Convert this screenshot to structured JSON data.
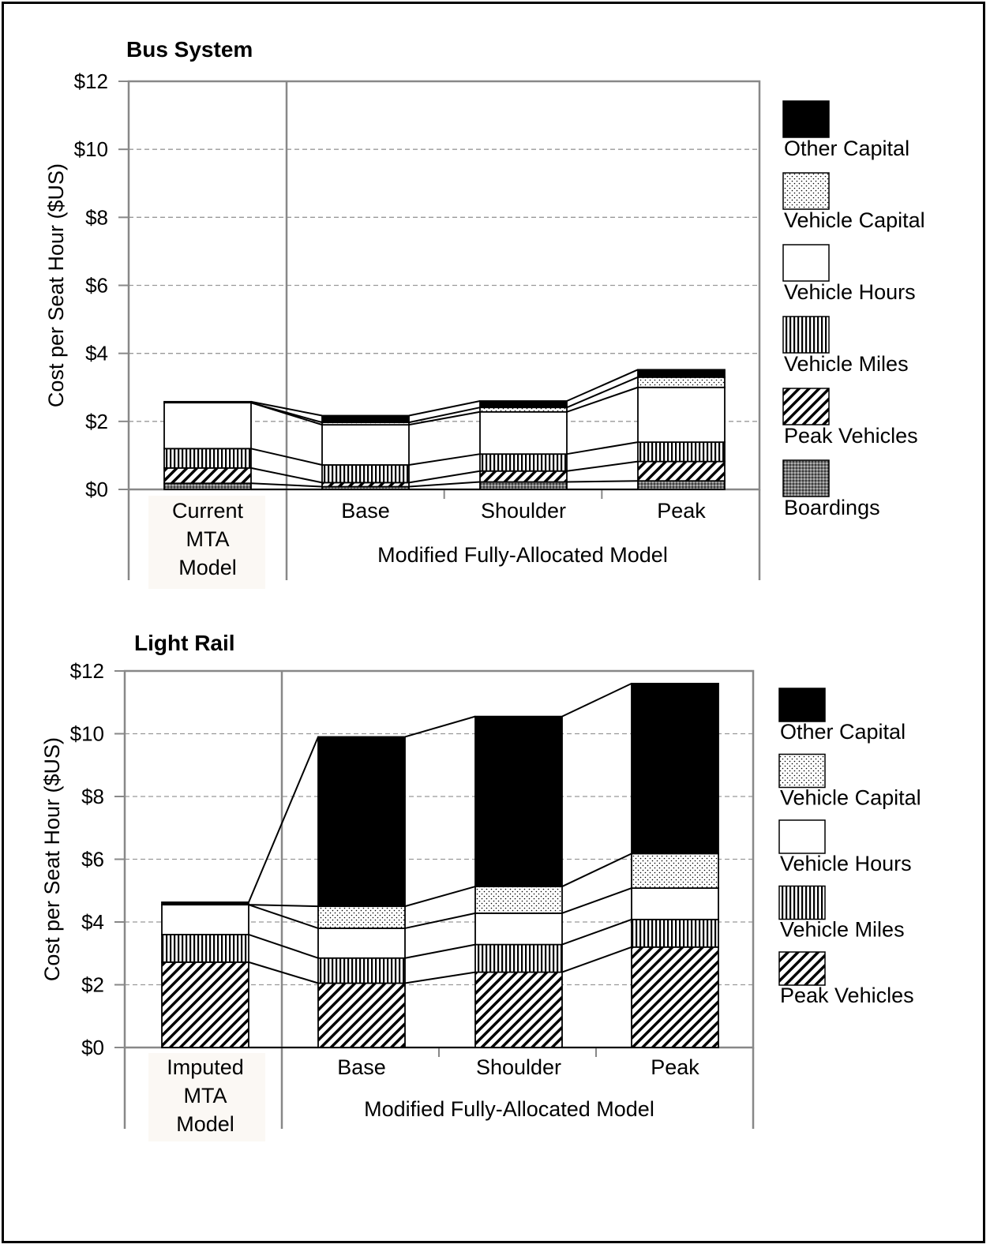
{
  "chart_data": [
    {
      "type": "bar",
      "stacked": true,
      "title": "Bus System",
      "ylabel": "Cost per Seat Hour ($US)",
      "xlabel": "",
      "ylim": [
        0,
        12
      ],
      "yticks": [
        "$0",
        "$2",
        "$4",
        "$6",
        "$8",
        "$10",
        "$12"
      ],
      "grid": true,
      "legend_position": "right",
      "categories": [
        "Current MTA Model",
        "Base",
        "Shoulder",
        "Peak"
      ],
      "category_lines": [
        [
          "Current",
          "MTA",
          "Model"
        ],
        [
          "Base"
        ],
        [
          "Shoulder"
        ],
        [
          "Peak"
        ]
      ],
      "group_label": "Modified Fully-Allocated Model",
      "series": [
        {
          "name": "Boardings",
          "pattern": "dots-dense",
          "values": [
            0.18,
            0.08,
            0.22,
            0.25
          ]
        },
        {
          "name": "Peak Vehicles",
          "pattern": "diag",
          "values": [
            0.45,
            0.12,
            0.32,
            0.57
          ]
        },
        {
          "name": "Vehicle Miles",
          "pattern": "vert",
          "values": [
            0.57,
            0.52,
            0.5,
            0.57
          ]
        },
        {
          "name": "Vehicle Hours",
          "pattern": "white",
          "values": [
            1.35,
            1.18,
            1.24,
            1.61
          ]
        },
        {
          "name": "Vehicle Capital",
          "pattern": "dots",
          "values": [
            0.0,
            0.07,
            0.13,
            0.3
          ]
        },
        {
          "name": "Other Capital",
          "pattern": "black",
          "values": [
            0.03,
            0.2,
            0.19,
            0.22
          ]
        }
      ]
    },
    {
      "type": "bar",
      "stacked": true,
      "title": "Light Rail",
      "ylabel": "Cost per Seat Hour ($US)",
      "xlabel": "",
      "ylim": [
        0,
        12
      ],
      "yticks": [
        "$0",
        "$2",
        "$4",
        "$6",
        "$8",
        "$10",
        "$12"
      ],
      "grid": true,
      "legend_position": "right",
      "categories": [
        "Imputed MTA Model",
        "Base",
        "Shoulder",
        "Peak"
      ],
      "category_lines": [
        [
          "Imputed",
          "MTA",
          "Model"
        ],
        [
          "Base"
        ],
        [
          "Shoulder"
        ],
        [
          "Peak"
        ]
      ],
      "group_label": "Modified Fully-Allocated Model",
      "series": [
        {
          "name": "Peak Vehicles",
          "pattern": "diag",
          "values": [
            2.72,
            2.05,
            2.4,
            3.2
          ]
        },
        {
          "name": "Vehicle Miles",
          "pattern": "vert",
          "values": [
            0.88,
            0.8,
            0.88,
            0.88
          ]
        },
        {
          "name": "Vehicle Hours",
          "pattern": "white",
          "values": [
            0.95,
            0.95,
            1.0,
            1.0
          ]
        },
        {
          "name": "Vehicle Capital",
          "pattern": "dots",
          "values": [
            0.0,
            0.7,
            0.85,
            1.1
          ]
        },
        {
          "name": "Other Capital",
          "pattern": "black",
          "values": [
            0.08,
            5.4,
            5.42,
            5.42
          ]
        }
      ]
    }
  ]
}
